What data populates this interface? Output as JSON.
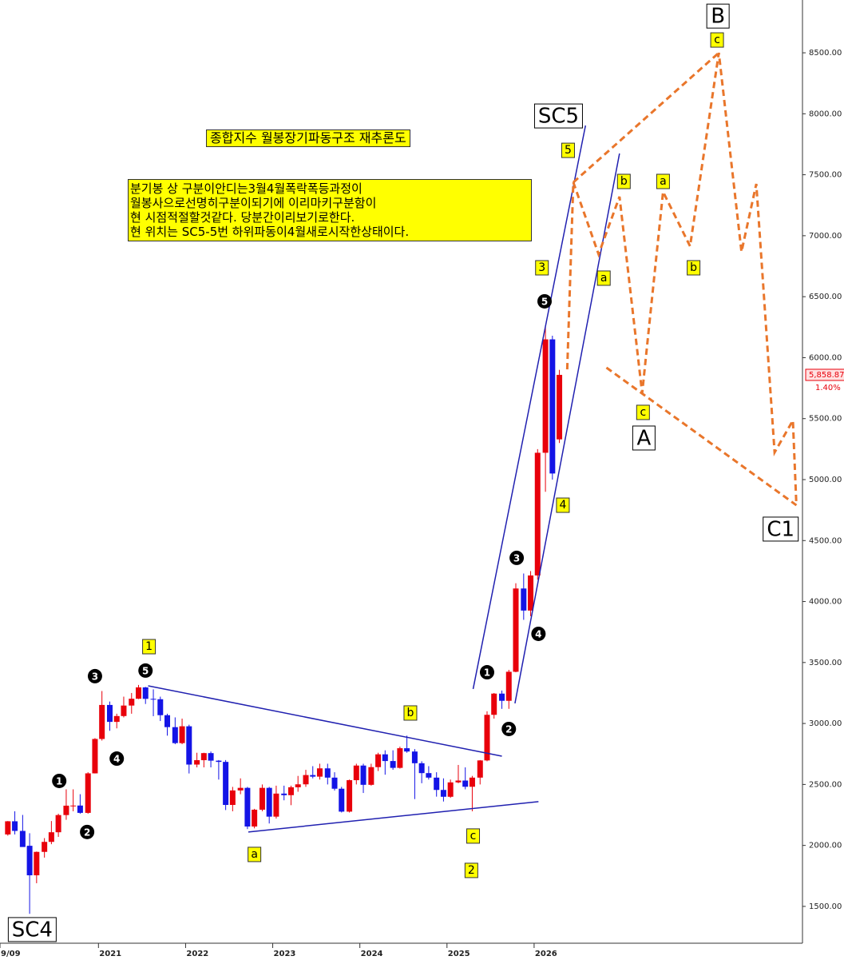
{
  "chart_data": {
    "type": "candlestick",
    "title": "종합지수 월봉장기파동구조 재추론도",
    "note": [
      "분기봉 상 구분이안디는3월4월폭락폭등과정이",
      "월봉사으로선명히구분이되기에 이리마키구분함이",
      "현 시점적절할것같다. 당분간이리보기로한다.",
      "현 위치는 SC5-5번 하위파동이4월새로시작한상태이다."
    ],
    "up_color": "#e8000b",
    "down_color": "#1414e6",
    "x": [
      2019.96,
      2020.04,
      2020.13,
      2020.21,
      2020.29,
      2020.38,
      2020.46,
      2020.54,
      2020.63,
      2020.71,
      2020.79,
      2020.88,
      2020.96,
      2021.04,
      2021.13,
      2021.21,
      2021.29,
      2021.38,
      2021.46,
      2021.54,
      2021.63,
      2021.71,
      2021.79,
      2021.88,
      2021.96,
      2022.04,
      2022.13,
      2022.21,
      2022.29,
      2022.38,
      2022.46,
      2022.54,
      2022.63,
      2022.71,
      2022.79,
      2022.88,
      2022.96,
      2023.04,
      2023.13,
      2023.21,
      2023.29,
      2023.38,
      2023.46,
      2023.54,
      2023.63,
      2023.71,
      2023.79,
      2023.88,
      2023.96,
      2024.04,
      2024.13,
      2024.21,
      2024.29,
      2024.38,
      2024.46,
      2024.54,
      2024.63,
      2024.71,
      2024.79,
      2024.88,
      2024.96,
      2025.04,
      2025.13,
      2025.21,
      2025.29,
      2025.38,
      2025.46,
      2025.54,
      2025.63,
      2025.71,
      2025.79,
      2025.88,
      2025.96,
      2026.04,
      2026.13,
      2026.21,
      2026.29
    ],
    "open": [
      2090,
      2198,
      2119,
      1997,
      1755,
      1947,
      2029,
      2108,
      2249,
      2326,
      2327,
      2267,
      2591,
      2873,
      3152,
      3013,
      3061,
      3147,
      3203,
      3296,
      3202,
      3199,
      3068,
      2970,
      2839,
      2977,
      2663,
      2699,
      2757,
      2695,
      2685,
      2332,
      2451,
      2472,
      2155,
      2293,
      2472,
      2236,
      2425,
      2412,
      2477,
      2501,
      2577,
      2564,
      2632,
      2556,
      2465,
      2277,
      2535,
      2655,
      2497,
      2642,
      2747,
      2692,
      2636,
      2797,
      2770,
      2674,
      2593,
      2556,
      2455,
      2399,
      2517,
      2532,
      2481,
      2556,
      2697,
      3071,
      3245,
      3186,
      3424,
      4107,
      3926,
      4214,
      5220,
      6150,
      5330
    ],
    "high": [
      2200,
      2280,
      2250,
      2100,
      1950,
      2060,
      2200,
      2260,
      2460,
      2460,
      2420,
      2600,
      2880,
      3266,
      3180,
      3080,
      3220,
      3250,
      3316,
      3300,
      3280,
      3220,
      3080,
      3050,
      3040,
      2990,
      2760,
      2760,
      2770,
      2700,
      2700,
      2480,
      2550,
      2480,
      2300,
      2500,
      2480,
      2490,
      2490,
      2490,
      2570,
      2620,
      2650,
      2670,
      2670,
      2600,
      2480,
      2540,
      2670,
      2670,
      2670,
      2760,
      2780,
      2780,
      2810,
      2900,
      2790,
      2690,
      2650,
      2600,
      2550,
      2540,
      2660,
      2640,
      2570,
      2700,
      3100,
      3250,
      3270,
      3440,
      4150,
      4230,
      4250,
      5250,
      6250,
      6180,
      5900
    ],
    "low": [
      2080,
      2090,
      1990,
      1439,
      1690,
      1900,
      2010,
      2070,
      2210,
      2280,
      2260,
      2260,
      2590,
      2860,
      2940,
      2960,
      3050,
      3080,
      3200,
      3160,
      3060,
      3020,
      2900,
      2830,
      2830,
      2590,
      2640,
      2640,
      2640,
      2540,
      2290,
      2280,
      2420,
      2134,
      2140,
      2280,
      2180,
      2220,
      2370,
      2330,
      2440,
      2480,
      2550,
      2540,
      2500,
      2450,
      2270,
      2270,
      2500,
      2430,
      2490,
      2610,
      2580,
      2620,
      2630,
      2760,
      2380,
      2510,
      2540,
      2400,
      2360,
      2390,
      2510,
      2460,
      2280,
      2500,
      2690,
      3040,
      3120,
      3120,
      3420,
      3850,
      3880,
      4180,
      4900,
      5000,
      5300
    ],
    "close": [
      2198,
      2119,
      1987,
      1755,
      1947,
      2029,
      2108,
      2249,
      2326,
      2327,
      2267,
      2591,
      2873,
      3152,
      3013,
      3061,
      3147,
      3203,
      3296,
      3202,
      3199,
      3068,
      2970,
      2839,
      2977,
      2663,
      2699,
      2757,
      2695,
      2685,
      2332,
      2451,
      2472,
      2155,
      2293,
      2472,
      2236,
      2425,
      2412,
      2477,
      2501,
      2577,
      2564,
      2632,
      2556,
      2465,
      2277,
      2535,
      2655,
      2497,
      2642,
      2747,
      2692,
      2636,
      2797,
      2770,
      2674,
      2593,
      2556,
      2455,
      2399,
      2517,
      2532,
      2481,
      2556,
      2697,
      3071,
      3245,
      3186,
      3424,
      4107,
      3926,
      4214,
      5220,
      6150,
      5050,
      5858.87
    ],
    "xlim": [
      2019.87,
      2029.08
    ],
    "xticks": [
      {
        "value": 2019.87,
        "label": "9/09"
      },
      2021,
      2022,
      2023,
      2024,
      2025,
      2026
    ],
    "ylim": [
      1198,
      8933
    ],
    "yticks": [
      {
        "value": 1500,
        "label": "1500.00"
      },
      {
        "value": 2000,
        "label": "2000.00"
      },
      {
        "value": 2500,
        "label": "2500.00"
      },
      {
        "value": 3000,
        "label": "3000.00"
      },
      {
        "value": 3500,
        "label": "3500.00"
      },
      {
        "value": 4000,
        "label": "4000.00"
      },
      {
        "value": 4500,
        "label": "4500.00"
      },
      {
        "value": 5000,
        "label": "5000.00"
      },
      {
        "value": 5500,
        "label": "5500.00"
      },
      {
        "value": 6000,
        "label": "6000.00"
      },
      {
        "value": 6500,
        "label": "6500.00"
      },
      {
        "value": 7000,
        "label": "7000.00"
      },
      {
        "value": 7500,
        "label": "7500.00"
      },
      {
        "value": 8000,
        "label": "8000.00"
      },
      {
        "value": 8500,
        "label": "8500.00"
      }
    ],
    "last_price": {
      "value": 5858.87,
      "label": "5,858.87"
    },
    "change_label": "1.40%",
    "trendlines": [
      {
        "x": [
          2021.57,
          2025.63
        ],
        "y": [
          3309,
          2732
        ],
        "color": "#2020b0",
        "dash": false
      },
      {
        "x": [
          2022.72,
          2026.05
        ],
        "y": [
          2110,
          2359
        ],
        "color": "#2020b0",
        "dash": false
      },
      {
        "x": [
          2025.3,
          2026.59
        ],
        "y": [
          3283,
          7904
        ],
        "color": "#2020b0",
        "dash": false
      },
      {
        "x": [
          2025.78,
          2026.98
        ],
        "y": [
          3165,
          7674
        ],
        "color": "#2020b0",
        "dash": false
      },
      {
        "x": [
          2026.38,
          2026.45,
          2026.74,
          2026.98,
          2027.24,
          2027.48,
          2027.79,
          2028.12,
          2028.38,
          2028.55,
          2028.76,
          2028.97,
          2029.01
        ],
        "y": [
          5904,
          7438,
          6848,
          7320,
          5708,
          7360,
          6914,
          8500,
          6868,
          7425,
          5223,
          5485,
          4790
        ],
        "color": "#e9762b",
        "dash": true
      },
      {
        "x": [
          2026.45,
          2028.12
        ],
        "y": [
          7438,
          8500
        ],
        "color": "#e9762b",
        "dash": true
      },
      {
        "x": [
          2026.83,
          2029.01
        ],
        "y": [
          5918,
          4790
        ],
        "color": "#e9762b",
        "dash": true
      }
    ],
    "annotations": [
      {
        "text": "SC4",
        "x": 2020.24,
        "y": 1310,
        "style": "big"
      },
      {
        "text": "SC5",
        "x": 2026.28,
        "y": 7982,
        "style": "big"
      },
      {
        "text": "B",
        "x": 2028.11,
        "y": 8801,
        "style": "big"
      },
      {
        "text": "A",
        "x": 2027.26,
        "y": 5341,
        "style": "big"
      },
      {
        "text": "C1",
        "x": 2028.83,
        "y": 4594,
        "style": "big"
      },
      {
        "text": "1",
        "x": 2021.58,
        "y": 3630,
        "style": "box"
      },
      {
        "text": "b",
        "x": 2024.58,
        "y": 3086,
        "style": "box"
      },
      {
        "text": "a",
        "x": 2022.79,
        "y": 1926,
        "style": "box"
      },
      {
        "text": "c",
        "x": 2025.3,
        "y": 2077,
        "style": "box"
      },
      {
        "text": "2",
        "x": 2025.28,
        "y": 1795,
        "style": "box"
      },
      {
        "text": "3",
        "x": 2026.09,
        "y": 6737,
        "style": "box"
      },
      {
        "text": "5",
        "x": 2026.39,
        "y": 7700,
        "style": "box"
      },
      {
        "text": "4",
        "x": 2026.33,
        "y": 4790,
        "style": "box"
      },
      {
        "text": "b",
        "x": 2027.03,
        "y": 7445,
        "style": "box"
      },
      {
        "text": "a",
        "x": 2026.8,
        "y": 6652,
        "style": "box"
      },
      {
        "text": "a",
        "x": 2027.48,
        "y": 7445,
        "style": "box"
      },
      {
        "text": "b",
        "x": 2027.83,
        "y": 6737,
        "style": "box"
      },
      {
        "text": "c",
        "x": 2028.1,
        "y": 8605,
        "style": "box"
      },
      {
        "text": "c",
        "x": 2027.25,
        "y": 5551,
        "style": "box"
      },
      {
        "text": "5",
        "x": 2026.12,
        "y": 6462,
        "style": "circle"
      },
      {
        "text": "3",
        "x": 2020.96,
        "y": 3388,
        "style": "circle"
      },
      {
        "text": "5",
        "x": 2021.54,
        "y": 3434,
        "style": "circle"
      },
      {
        "text": "4",
        "x": 2021.21,
        "y": 2712,
        "style": "circle"
      },
      {
        "text": "1",
        "x": 2020.55,
        "y": 2529,
        "style": "circle"
      },
      {
        "text": "2",
        "x": 2020.87,
        "y": 2110,
        "style": "circle"
      },
      {
        "text": "1",
        "x": 2025.46,
        "y": 3420,
        "style": "circle"
      },
      {
        "text": "2",
        "x": 2025.71,
        "y": 2955,
        "style": "circle"
      },
      {
        "text": "3",
        "x": 2025.8,
        "y": 4358,
        "style": "circle"
      },
      {
        "text": "4",
        "x": 2026.05,
        "y": 3735,
        "style": "circle"
      }
    ]
  }
}
